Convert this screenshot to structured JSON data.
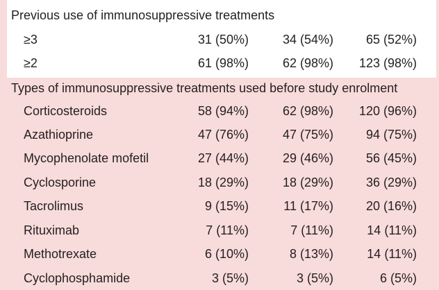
{
  "section1": {
    "heading": "Previous use of immunosuppressive treatments",
    "rows": [
      {
        "label": "≥3",
        "c1": "31 (50%)",
        "c2": "34 (54%)",
        "c3": "65 (52%)"
      },
      {
        "label": "≥2",
        "c1": "61 (98%)",
        "c2": "62 (98%)",
        "c3": "123 (98%)"
      }
    ]
  },
  "section2": {
    "heading": "Types of immunosuppressive treatments used before study enrolment",
    "rows": [
      {
        "label": "Corticosteroids",
        "c1": "58 (94%)",
        "c2": "62 (98%)",
        "c3": "120 (96%)"
      },
      {
        "label": "Azathioprine",
        "c1": "47 (76%)",
        "c2": "47 (75%)",
        "c3": "94 (75%)"
      },
      {
        "label": "Mycophenolate mofetil",
        "c1": "27 (44%)",
        "c2": "29 (46%)",
        "c3": "56 (45%)"
      },
      {
        "label": "Cyclosporine",
        "c1": "18 (29%)",
        "c2": "18 (29%)",
        "c3": "36 (29%)"
      },
      {
        "label": "Tacrolimus",
        "c1": "9 (15%)",
        "c2": "11 (17%)",
        "c3": "20 (16%)"
      },
      {
        "label": "Rituximab",
        "c1": "7 (11%)",
        "c2": "7 (11%)",
        "c3": "14 (11%)"
      },
      {
        "label": "Methotrexate",
        "c1": "6 (10%)",
        "c2": "8 (13%)",
        "c3": "14 (11%)"
      },
      {
        "label": "Cyclophosphamide",
        "c1": "3 (5%)",
        "c2": "3 (5%)",
        "c3": "6 (5%)"
      }
    ]
  },
  "colors": {
    "band": "#f8dbdb",
    "text": "#231f20"
  }
}
